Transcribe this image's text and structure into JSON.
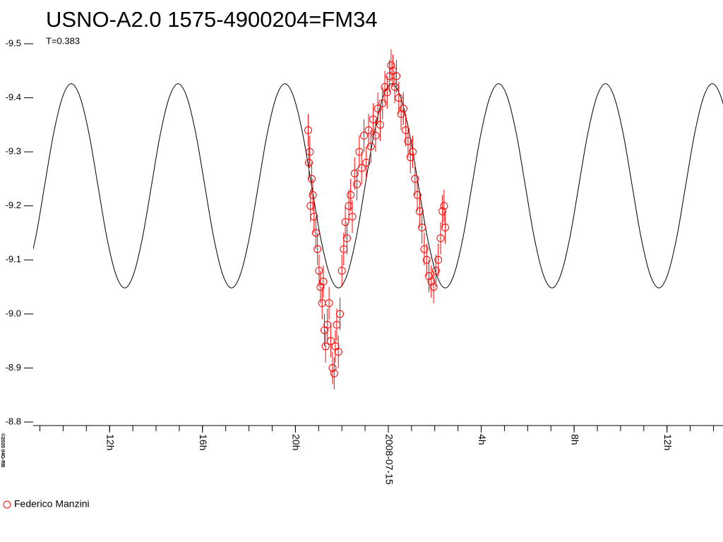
{
  "chart_data": {
    "type": "scatter",
    "title": "USNO-A2.0 1575-4900204=FM34",
    "subtitle": "T=0.383",
    "copyright": "©2020 04G-RB",
    "xlim": [
      -15.29,
      14.41
    ],
    "ylim": [
      -9.5,
      -8.8
    ],
    "yticks": [
      -9.5,
      -9.4,
      -9.3,
      -9.2,
      -9.1,
      {
        "value": -9,
        "label": "-9.0"
      },
      -8.9,
      -8.8
    ],
    "xticks": [
      {
        "value": -12,
        "label": "12h"
      },
      {
        "value": -8,
        "label": "16h"
      },
      {
        "value": -4,
        "label": "20h"
      },
      {
        "value": 0,
        "label": "2008-07-15"
      },
      {
        "value": 4,
        "label": "4h"
      },
      {
        "value": 8,
        "label": "8h"
      },
      {
        "value": 12,
        "label": "12h"
      }
    ],
    "curve": {
      "color": "#000000",
      "x": [
        -15.57,
        -15.18,
        -14.8,
        -14.42,
        -14.03,
        -13.65,
        -13.27,
        -12.88,
        -12.5,
        -12.12,
        -11.73,
        -11.35,
        -10.97,
        -10.58,
        -10.2,
        -9.82,
        -9.43,
        -9.05,
        -8.67,
        -8.28,
        -7.9,
        -7.52,
        -7.13,
        -6.75,
        -6.37,
        -5.98,
        -5.6,
        -5.22,
        -4.83,
        -4.45,
        -4.07,
        -3.68,
        -3.3,
        -2.92,
        -2.53,
        -2.15,
        -1.77,
        -1.38,
        -1.0,
        -0.62,
        -0.23,
        0.15,
        0.53,
        0.92,
        1.3,
        1.68,
        2.07,
        2.45,
        2.83,
        3.22,
        3.6,
        3.98,
        4.37,
        4.75,
        5.13,
        5.52,
        5.9,
        6.28,
        6.67,
        7.05,
        7.43,
        7.82,
        8.2,
        8.58,
        8.97,
        9.35,
        9.73,
        10.12,
        10.5,
        10.88,
        11.27,
        11.65,
        12.03,
        12.42,
        12.8,
        13.18,
        13.57,
        13.95,
        14.33,
        14.72
      ],
      "values": [
        -9.073,
        -9.142,
        -9.237,
        -9.332,
        -9.401,
        -9.426,
        -9.401,
        -9.332,
        -9.237,
        -9.142,
        -9.073,
        -9.048,
        -9.073,
        -9.142,
        -9.237,
        -9.332,
        -9.401,
        -9.426,
        -9.401,
        -9.332,
        -9.237,
        -9.142,
        -9.073,
        -9.048,
        -9.073,
        -9.142,
        -9.237,
        -9.332,
        -9.401,
        -9.426,
        -9.401,
        -9.332,
        -9.237,
        -9.142,
        -9.073,
        -9.048,
        -9.073,
        -9.142,
        -9.237,
        -9.332,
        -9.401,
        -9.426,
        -9.401,
        -9.332,
        -9.237,
        -9.142,
        -9.073,
        -9.048,
        -9.073,
        -9.142,
        -9.237,
        -9.332,
        -9.401,
        -9.426,
        -9.401,
        -9.332,
        -9.237,
        -9.142,
        -9.073,
        -9.048,
        -9.073,
        -9.142,
        -9.237,
        -9.332,
        -9.401,
        -9.426,
        -9.401,
        -9.332,
        -9.237,
        -9.142,
        -9.073,
        -9.048,
        -9.073,
        -9.142,
        -9.237,
        -9.332,
        -9.401,
        -9.426,
        -9.401,
        -9.332
      ]
    },
    "series": [
      {
        "name": "Federico Manzini",
        "color": "#ff0000",
        "x": [
          -3.45,
          -3.42,
          -3.38,
          -3.35,
          -3.3,
          -3.25,
          -3.2,
          -3.12,
          -3.05,
          -2.98,
          -2.92,
          -2.85,
          -2.8,
          -2.75,
          -2.7,
          -2.62,
          -2.55,
          -2.48,
          -2.4,
          -2.33,
          -2.28,
          -2.22,
          -2.15,
          -2.08,
          -2.0,
          -1.92,
          -1.85,
          -1.78,
          -1.7,
          -1.62,
          -1.55,
          -1.45,
          -1.35,
          -1.25,
          -1.15,
          -1.05,
          -0.95,
          -0.85,
          -0.75,
          -0.65,
          -0.55,
          -0.45,
          -0.35,
          -0.25,
          -0.15,
          -0.05,
          0.05,
          0.12,
          0.2,
          0.28,
          0.35,
          0.45,
          0.55,
          0.65,
          0.75,
          0.85,
          0.95,
          1.05,
          1.15,
          1.25,
          1.35,
          1.45,
          1.55,
          1.65,
          1.75,
          1.85,
          1.95,
          2.05,
          2.15,
          2.25,
          2.33,
          2.4,
          2.45
        ],
        "values": [
          -9.34,
          -9.28,
          -9.3,
          -9.2,
          -9.25,
          -9.22,
          -9.18,
          -9.15,
          -9.12,
          -9.08,
          -9.05,
          -9.02,
          -9.06,
          -8.97,
          -8.94,
          -8.98,
          -9.02,
          -8.95,
          -8.9,
          -8.89,
          -8.94,
          -8.98,
          -8.93,
          -9.0,
          -9.08,
          -9.12,
          -9.17,
          -9.14,
          -9.2,
          -9.22,
          -9.18,
          -9.26,
          -9.24,
          -9.3,
          -9.27,
          -9.33,
          -9.28,
          -9.34,
          -9.31,
          -9.36,
          -9.33,
          -9.38,
          -9.35,
          -9.39,
          -9.42,
          -9.41,
          -9.44,
          -9.46,
          -9.45,
          -9.42,
          -9.44,
          -9.4,
          -9.37,
          -9.38,
          -9.34,
          -9.32,
          -9.29,
          -9.3,
          -9.25,
          -9.22,
          -9.19,
          -9.16,
          -9.12,
          -9.1,
          -9.07,
          -9.06,
          -9.05,
          -9.08,
          -9.1,
          -9.14,
          -9.19,
          -9.2,
          -9.16
        ],
        "errors": [
          0.03,
          0.03,
          0.03,
          0.03,
          0.03,
          0.03,
          0.03,
          0.03,
          0.03,
          0.03,
          0.03,
          0.03,
          0.03,
          0.03,
          0.03,
          0.03,
          0.03,
          0.03,
          0.03,
          0.03,
          0.03,
          0.03,
          0.03,
          0.03,
          0.03,
          0.03,
          0.03,
          0.03,
          0.03,
          0.03,
          0.03,
          0.03,
          0.03,
          0.03,
          0.03,
          0.03,
          0.03,
          0.03,
          0.03,
          0.03,
          0.03,
          0.03,
          0.03,
          0.03,
          0.03,
          0.03,
          0.03,
          0.03,
          0.03,
          0.03,
          0.03,
          0.03,
          0.03,
          0.03,
          0.03,
          0.03,
          0.03,
          0.03,
          0.03,
          0.03,
          0.03,
          0.03,
          0.03,
          0.03,
          0.03,
          0.03,
          0.03,
          0.03,
          0.03,
          0.03,
          0.03,
          0.03,
          0.03
        ]
      }
    ]
  }
}
